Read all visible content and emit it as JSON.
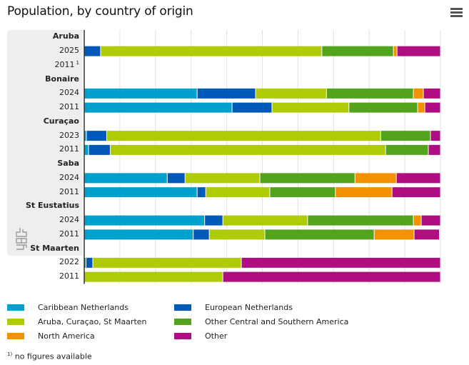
{
  "header": {
    "title": "Population, by country of origin",
    "menu_icon": "hamburger-menu-icon"
  },
  "chart_data": {
    "type": "bar",
    "orientation": "horizontal",
    "stacked": true,
    "title": "Population, by country of origin",
    "xlabel": "%",
    "ylabel": "",
    "xlim": [
      0,
      100
    ],
    "x_ticks": [
      "0",
      "10",
      "20",
      "30",
      "40",
      "50",
      "60",
      "70",
      "80",
      "90",
      "100"
    ],
    "grid": true,
    "legend_position": "bottom",
    "groups": [
      {
        "name": "Aruba",
        "rows": [
          {
            "label": "2025",
            "values": [
              0,
              4.6,
              62.1,
              20.1,
              1.0,
              12.2
            ]
          },
          {
            "label": "2011",
            "footnote": "1",
            "values": null
          }
        ]
      },
      {
        "name": "Bonaire",
        "rows": [
          {
            "label": "2024",
            "values": [
              31.7,
              16.4,
              19.9,
              24.4,
              2.8,
              4.8
            ]
          },
          {
            "label": "2011",
            "values": [
              41.5,
              11.2,
              21.6,
              19.3,
              2.0,
              4.4
            ]
          }
        ]
      },
      {
        "name": "Curaçao",
        "rows": [
          {
            "label": "2023",
            "values": [
              0.6,
              5.7,
              76.9,
              14.0,
              0,
              2.8
            ]
          },
          {
            "label": "2011",
            "values": [
              1.2,
              6.1,
              77.3,
              12.0,
              0,
              3.4
            ]
          }
        ]
      },
      {
        "name": "Saba",
        "rows": [
          {
            "label": "2024",
            "values": [
              23.3,
              5.0,
              21.0,
              26.7,
              11.6,
              12.4
            ]
          },
          {
            "label": "2011",
            "values": [
              31.7,
              2.4,
              18.0,
              18.4,
              15.9,
              13.6
            ]
          }
        ]
      },
      {
        "name": "St Eustatius",
        "rows": [
          {
            "label": "2024",
            "values": [
              33.8,
              5.1,
              23.8,
              29.7,
              2.2,
              5.4
            ]
          },
          {
            "label": "2011",
            "values": [
              30.6,
              4.5,
              15.6,
              30.7,
              11.2,
              7.1
            ]
          }
        ]
      },
      {
        "name": "St Maarten",
        "rows": [
          {
            "label": "2022",
            "values": [
              0.5,
              1.9,
              41.7,
              0,
              0,
              55.9
            ]
          },
          {
            "label": "2011",
            "values": [
              0,
              0,
              38.9,
              0,
              0,
              61.1
            ]
          }
        ]
      }
    ],
    "series": [
      {
        "name": "Caribbean Netherlands",
        "color": "#00a1cd"
      },
      {
        "name": "European Netherlands",
        "color": "#0058b8"
      },
      {
        "name": "Aruba, Curaçao, St Maarten",
        "color": "#afcb05"
      },
      {
        "name": "Other Central and Southern America",
        "color": "#53a31d"
      },
      {
        "name": "North America",
        "color": "#f39200"
      },
      {
        "name": "Other",
        "color": "#af0e80"
      }
    ],
    "legend_order": [
      0,
      1,
      2,
      3,
      4,
      5
    ],
    "footnote": "no figures available",
    "footnote_marker": "1)"
  },
  "logo": "cbs-logo-icon"
}
